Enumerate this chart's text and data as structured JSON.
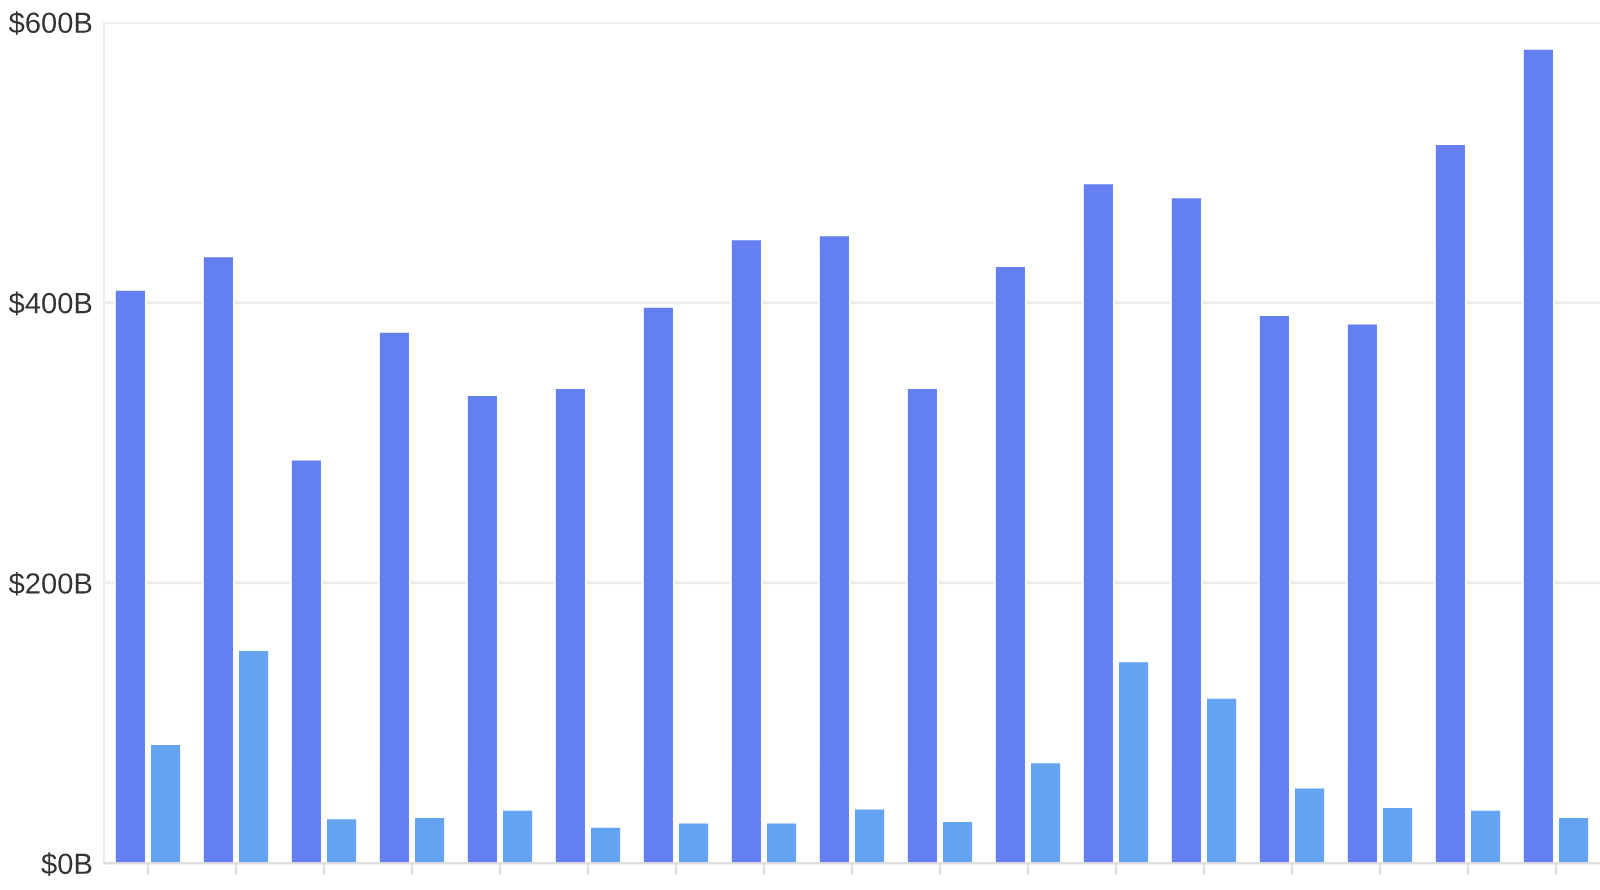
{
  "chart_data": {
    "type": "bar",
    "categories": [
      null,
      null,
      null,
      null,
      null,
      null,
      null,
      null,
      null,
      null,
      null,
      null,
      null,
      null,
      null,
      null,
      null
    ],
    "series": [
      {
        "color": "#647ff0",
        "values": [
          409,
          433,
          288,
          379,
          334,
          339,
          397,
          445,
          448,
          339,
          426,
          485,
          475,
          391,
          385,
          513,
          581
        ]
      },
      {
        "color": "#63a3f0",
        "values": [
          85,
          152,
          32,
          33,
          38,
          26,
          29,
          29,
          39,
          30,
          72,
          144,
          118,
          54,
          40,
          38,
          33
        ]
      }
    ],
    "ylim": [
      0,
      600
    ],
    "yticks": [
      {
        "value": 0,
        "label": "$0B"
      },
      {
        "value": 200,
        "label": "$200B"
      },
      {
        "value": 400,
        "label": "$400B"
      },
      {
        "value": 600,
        "label": "$600B"
      }
    ],
    "grid": "y",
    "tick_labels": "y"
  }
}
